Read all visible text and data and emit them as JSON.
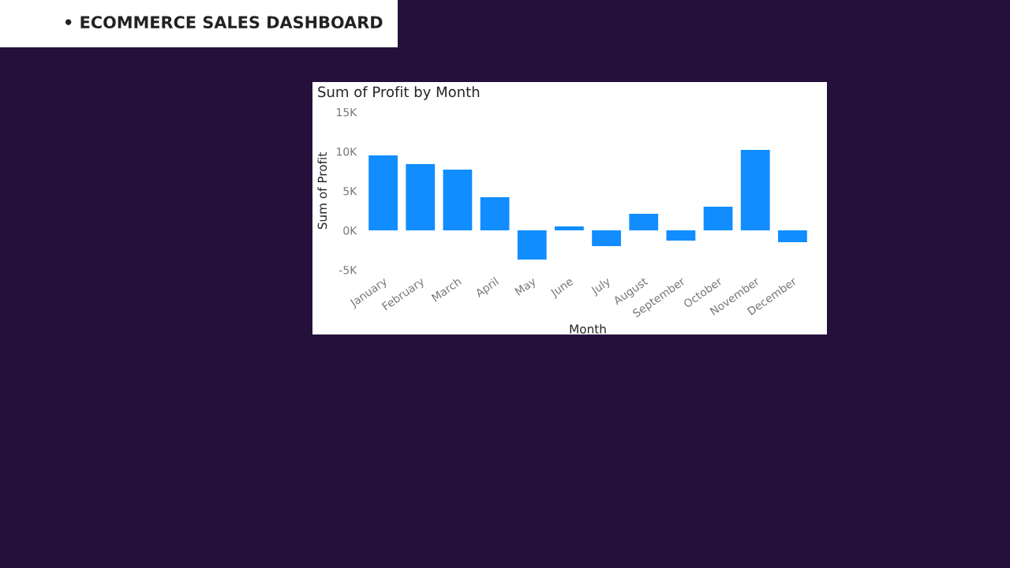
{
  "chart_data": {
    "type": "bar",
    "title": "Sum of Profit by Month",
    "xlabel": "Month",
    "ylabel": "Sum of Profit",
    "annotations": [
      "• ECOMMERCE SALES DASHBOARD"
    ],
    "categories": [
      "January",
      "February",
      "March",
      "April",
      "May",
      "June",
      "July",
      "August",
      "September",
      "October",
      "November",
      "December"
    ],
    "values": [
      9500,
      8400,
      7700,
      4200,
      -3700,
      500,
      -2000,
      2100,
      -1300,
      3000,
      10200,
      -1500
    ],
    "color": "#118dff",
    "ylim": [
      -5000,
      15000
    ],
    "yticks": [
      {
        "value": -5000,
        "label": "-5K"
      },
      {
        "value": 0,
        "label": "0K"
      },
      {
        "value": 5000,
        "label": "5K"
      },
      {
        "value": 10000,
        "label": "10K"
      },
      {
        "value": 15000,
        "label": "15K"
      }
    ],
    "grid": false
  }
}
